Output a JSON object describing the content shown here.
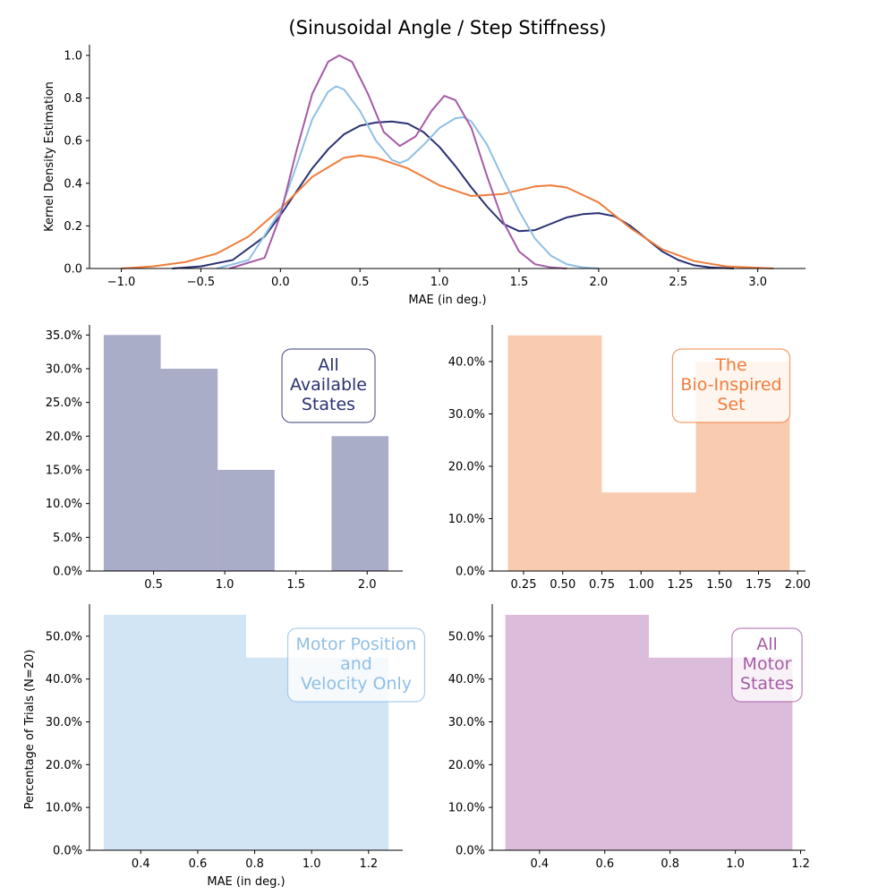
{
  "figure": {
    "title": "(Sinusoidal Angle / Step Stiffness)",
    "shared_ylabel": "Percentage of Trials (N=20)",
    "colors": {
      "navy": "#2a3172",
      "orange": "#f07c3b",
      "lightblue": "#8fbfe6",
      "purple": "#a55ba5"
    }
  },
  "chart_data": [
    {
      "type": "line",
      "panel": "kde",
      "xlabel": "MAE (in deg.)",
      "ylabel": "Kernel Density Estimation",
      "xlim": [
        -1.2,
        3.3
      ],
      "ylim": [
        0,
        1.05
      ],
      "xticks": [
        -1.0,
        -0.5,
        0.0,
        0.5,
        1.0,
        1.5,
        2.0,
        2.5,
        3.0
      ],
      "xtick_labels": [
        "−1.0",
        "−0.5",
        "0.0",
        "0.5",
        "1.0",
        "1.5",
        "2.0",
        "2.5",
        "3.0"
      ],
      "yticks": [
        0.0,
        0.2,
        0.4,
        0.6,
        0.8,
        1.0
      ],
      "ytick_labels": [
        "0.0",
        "0.2",
        "0.4",
        "0.6",
        "0.8",
        "1.0"
      ],
      "grid": false,
      "series": [
        {
          "color": "#2a3172",
          "x": [
            -0.68,
            -0.5,
            -0.3,
            -0.1,
            0.0,
            0.1,
            0.2,
            0.3,
            0.4,
            0.5,
            0.6,
            0.7,
            0.8,
            0.9,
            1.0,
            1.1,
            1.2,
            1.3,
            1.4,
            1.5,
            1.6,
            1.7,
            1.8,
            1.9,
            2.0,
            2.1,
            2.2,
            2.3,
            2.4,
            2.5,
            2.6,
            2.7,
            2.85
          ],
          "y": [
            0.0,
            0.01,
            0.04,
            0.15,
            0.25,
            0.36,
            0.47,
            0.56,
            0.63,
            0.67,
            0.685,
            0.69,
            0.68,
            0.64,
            0.57,
            0.48,
            0.38,
            0.29,
            0.21,
            0.175,
            0.18,
            0.21,
            0.24,
            0.255,
            0.26,
            0.245,
            0.2,
            0.14,
            0.08,
            0.04,
            0.015,
            0.005,
            0.0
          ]
        },
        {
          "color": "#f07c3b",
          "x": [
            -1.0,
            -0.8,
            -0.6,
            -0.4,
            -0.2,
            0.0,
            0.2,
            0.4,
            0.5,
            0.6,
            0.8,
            1.0,
            1.2,
            1.4,
            1.6,
            1.7,
            1.8,
            2.0,
            2.2,
            2.4,
            2.6,
            2.8,
            3.1
          ],
          "y": [
            0.0,
            0.01,
            0.03,
            0.07,
            0.15,
            0.28,
            0.43,
            0.52,
            0.53,
            0.52,
            0.47,
            0.39,
            0.34,
            0.35,
            0.385,
            0.39,
            0.38,
            0.31,
            0.19,
            0.09,
            0.035,
            0.01,
            0.0
          ]
        },
        {
          "color": "#8fbfe6",
          "x": [
            -0.4,
            -0.2,
            0.0,
            0.1,
            0.2,
            0.3,
            0.35,
            0.4,
            0.5,
            0.6,
            0.7,
            0.75,
            0.8,
            0.9,
            1.0,
            1.1,
            1.15,
            1.2,
            1.3,
            1.4,
            1.5,
            1.6,
            1.7,
            1.8,
            1.9,
            2.0
          ],
          "y": [
            0.0,
            0.04,
            0.27,
            0.48,
            0.7,
            0.83,
            0.855,
            0.84,
            0.74,
            0.6,
            0.51,
            0.495,
            0.51,
            0.58,
            0.66,
            0.705,
            0.71,
            0.69,
            0.58,
            0.42,
            0.27,
            0.14,
            0.06,
            0.02,
            0.005,
            0.0
          ]
        },
        {
          "color": "#a55ba5",
          "x": [
            -0.32,
            -0.1,
            0.0,
            0.1,
            0.2,
            0.3,
            0.37,
            0.45,
            0.55,
            0.65,
            0.75,
            0.85,
            0.95,
            1.03,
            1.1,
            1.2,
            1.3,
            1.4,
            1.5,
            1.6,
            1.7,
            1.8
          ],
          "y": [
            0.0,
            0.05,
            0.25,
            0.55,
            0.82,
            0.97,
            1.0,
            0.97,
            0.82,
            0.64,
            0.575,
            0.62,
            0.74,
            0.81,
            0.79,
            0.66,
            0.43,
            0.22,
            0.08,
            0.02,
            0.005,
            0.0
          ]
        }
      ]
    },
    {
      "type": "bar",
      "panel": "hist-1",
      "label_lines": [
        "All",
        "Available",
        "States"
      ],
      "color": "#2a3172",
      "bins": [
        [
          0.15,
          0.55,
          35.0
        ],
        [
          0.55,
          0.95,
          30.0
        ],
        [
          0.95,
          1.35,
          15.0
        ],
        [
          1.35,
          1.75,
          0.0
        ],
        [
          1.75,
          2.15,
          20.0
        ]
      ],
      "xlim": [
        0.05,
        2.25
      ],
      "ylim": [
        0,
        36.5
      ],
      "xticks": [
        0.5,
        1.0,
        1.5,
        2.0
      ],
      "xtick_labels": [
        "0.5",
        "1.0",
        "1.5",
        "2.0"
      ],
      "yticks": [
        0,
        5,
        10,
        15,
        20,
        25,
        30,
        35
      ],
      "ytick_labels": [
        "0.0%",
        "5.0%",
        "10.0%",
        "15.0%",
        "20.0%",
        "25.0%",
        "30.0%",
        "35.0%"
      ]
    },
    {
      "type": "bar",
      "panel": "hist-2",
      "label_lines": [
        "The",
        "Bio-Inspired",
        "Set"
      ],
      "color": "#f07c3b",
      "bins": [
        [
          0.15,
          0.75,
          45.0
        ],
        [
          0.75,
          1.35,
          15.0
        ],
        [
          1.35,
          1.95,
          40.0
        ]
      ],
      "xlim": [
        0.05,
        2.05
      ],
      "ylim": [
        0,
        47
      ],
      "xticks": [
        0.25,
        0.5,
        0.75,
        1.0,
        1.25,
        1.5,
        1.75,
        2.0
      ],
      "xtick_labels": [
        "0.25",
        "0.50",
        "0.75",
        "1.00",
        "1.25",
        "1.50",
        "1.75",
        "2.00"
      ],
      "yticks": [
        0,
        10,
        20,
        30,
        40
      ],
      "ytick_labels": [
        "0.0%",
        "10.0%",
        "20.0%",
        "30.0%",
        "40.0%"
      ]
    },
    {
      "type": "bar",
      "panel": "hist-3",
      "label_lines": [
        "Motor Position",
        "and",
        "Velocity Only"
      ],
      "color": "#8fbfe6",
      "xlabel": "MAE (in deg.)",
      "bins": [
        [
          0.27,
          0.77,
          55.0
        ],
        [
          0.77,
          1.27,
          45.0
        ]
      ],
      "xlim": [
        0.22,
        1.32
      ],
      "ylim": [
        0,
        57.5
      ],
      "xticks": [
        0.4,
        0.6,
        0.8,
        1.0,
        1.2
      ],
      "xtick_labels": [
        "0.4",
        "0.6",
        "0.8",
        "1.0",
        "1.2"
      ],
      "yticks": [
        0,
        10,
        20,
        30,
        40,
        50
      ],
      "ytick_labels": [
        "0.0%",
        "10.0%",
        "20.0%",
        "30.0%",
        "40.0%",
        "50.0%"
      ]
    },
    {
      "type": "bar",
      "panel": "hist-4",
      "label_lines": [
        "All",
        "Motor",
        "States"
      ],
      "color": "#a55ba5",
      "bins": [
        [
          0.295,
          0.735,
          55.0
        ],
        [
          0.735,
          1.175,
          45.0
        ]
      ],
      "xlim": [
        0.255,
        1.215
      ],
      "ylim": [
        0,
        57.5
      ],
      "xticks": [
        0.4,
        0.6,
        0.8,
        1.0,
        1.2
      ],
      "xtick_labels": [
        "0.4",
        "0.6",
        "0.8",
        "1.0",
        "1.2"
      ],
      "yticks": [
        0,
        10,
        20,
        30,
        40,
        50
      ],
      "ytick_labels": [
        "0.0%",
        "10.0%",
        "20.0%",
        "30.0%",
        "40.0%",
        "50.0%"
      ]
    }
  ]
}
